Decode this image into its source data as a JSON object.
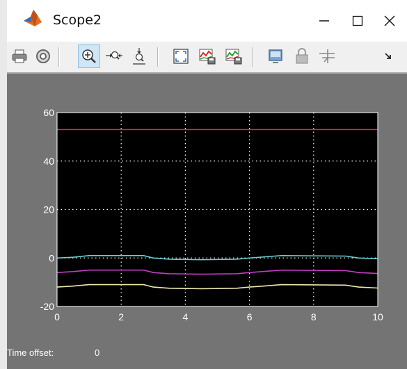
{
  "window": {
    "title": "Scope2",
    "minimize_label": "—",
    "maximize_label": "☐",
    "close_label": "✕"
  },
  "toolbar": {
    "items": [
      {
        "name": "print",
        "icon": "printer-icon"
      },
      {
        "name": "parameters",
        "icon": "gear-icon"
      },
      {
        "name": "zoom",
        "icon": "zoom-in-icon",
        "active": true
      },
      {
        "name": "zoom-x",
        "icon": "zoom-x-icon"
      },
      {
        "name": "zoom-y",
        "icon": "zoom-y-icon"
      },
      {
        "name": "autoscale",
        "icon": "autoscale-icon"
      },
      {
        "name": "save-axes",
        "icon": "save-axes-icon"
      },
      {
        "name": "restore-axes",
        "icon": "restore-axes-icon"
      },
      {
        "name": "floating-scope",
        "icon": "floating-scope-icon"
      },
      {
        "name": "lock-axes",
        "icon": "lock-icon"
      },
      {
        "name": "signal-selection",
        "icon": "signal-selector-icon"
      },
      {
        "name": "overflow",
        "icon": "chevron-more-icon"
      }
    ]
  },
  "status": {
    "time_offset_label": "Time offset:",
    "time_offset_value": "0"
  },
  "colors": {
    "plot_background": "#000000",
    "figure_background": "#747474",
    "grid": "#ffffff",
    "red": "#c8322f",
    "cyan": "#68d0d2",
    "magenta": "#c43cc4",
    "cream": "#f0e8b0"
  },
  "chart_data": {
    "type": "line",
    "xlim": [
      0,
      10
    ],
    "ylim": [
      -20,
      60
    ],
    "x_ticks": [
      "0",
      "2",
      "4",
      "6",
      "8",
      "10"
    ],
    "y_ticks": [
      "-20",
      "0",
      "20",
      "40",
      "60"
    ],
    "grid": true,
    "series": [
      {
        "color": "#c8322f",
        "x": [
          0,
          10
        ],
        "y": [
          53,
          53
        ]
      },
      {
        "color": "#68d0d2",
        "x": [
          0,
          0.5,
          1,
          2.7,
          3,
          3.5,
          4.5,
          5.6,
          6,
          6.5,
          7,
          9,
          9.4,
          10
        ],
        "y": [
          0,
          0.3,
          1,
          1,
          0,
          -0.5,
          -0.7,
          -0.5,
          0,
          0.5,
          1,
          0.8,
          0,
          -0.3
        ]
      },
      {
        "color": "#c43cc4",
        "x": [
          0,
          0.5,
          1,
          2.7,
          3,
          3.5,
          4.5,
          5.6,
          6,
          6.5,
          7,
          9,
          9.4,
          10
        ],
        "y": [
          -6,
          -5.6,
          -5,
          -5,
          -6,
          -6.5,
          -6.7,
          -6.5,
          -6,
          -5.5,
          -5,
          -5.2,
          -6,
          -6.4
        ]
      },
      {
        "color": "#f0e8b0",
        "x": [
          0,
          0.5,
          1,
          2.7,
          3,
          3.5,
          4.5,
          5.6,
          6,
          6.5,
          7,
          9,
          9.4,
          10
        ],
        "y": [
          -12,
          -11.6,
          -11,
          -11,
          -12,
          -12.5,
          -12.7,
          -12.5,
          -12,
          -11.5,
          -11,
          -11.2,
          -12,
          -12.4
        ]
      }
    ]
  }
}
